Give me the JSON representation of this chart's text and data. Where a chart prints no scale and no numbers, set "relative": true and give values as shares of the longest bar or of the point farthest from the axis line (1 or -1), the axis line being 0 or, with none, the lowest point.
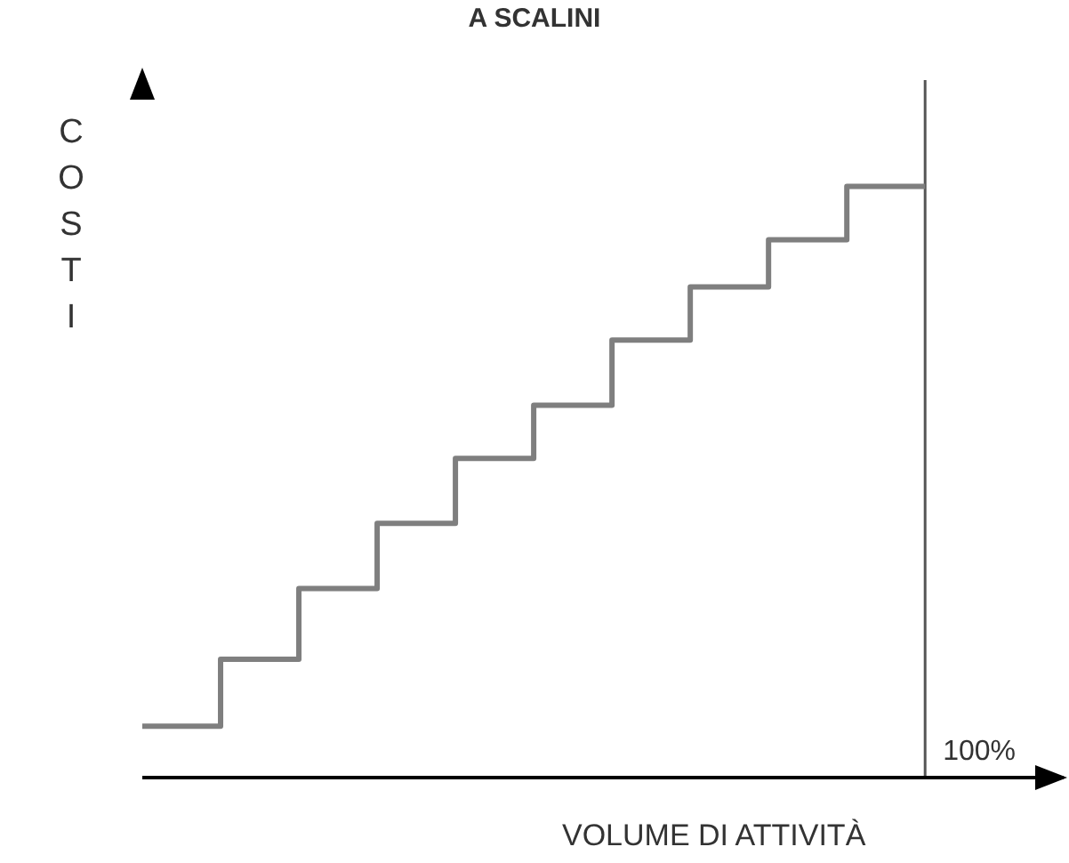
{
  "chart_data": {
    "type": "step",
    "title": "A SCALINI",
    "xlabel": "VOLUME DI ATTIVITÀ",
    "ylabel": "COSTI",
    "relative": true,
    "marker": "none",
    "line_style": "solid",
    "categories": [
      null,
      null,
      null,
      null,
      null,
      null,
      null,
      null,
      null,
      null,
      null
    ],
    "series": [
      {
        "color": "#7f7f7f",
        "values": [
          0.087,
          0.2,
          0.32,
          0.43,
          0.54,
          0.63,
          0.74,
          0.83,
          0.91,
          1,
          1
        ]
      }
    ],
    "ref_lines": [
      {
        "axis": "x",
        "label": "100%",
        "color": "#555555"
      }
    ]
  }
}
